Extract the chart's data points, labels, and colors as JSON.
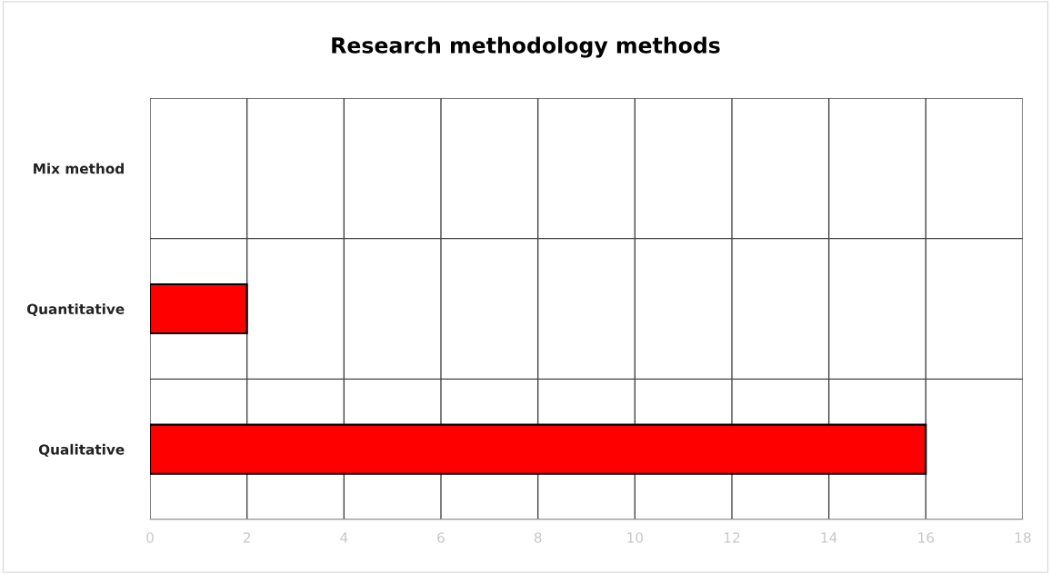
{
  "chart_data": {
    "type": "bar",
    "orientation": "horizontal",
    "title": "Research methodology methods",
    "categories": [
      "Mix method",
      "Quantitative",
      "Qualitative"
    ],
    "values": [
      0,
      2,
      16
    ],
    "color": "#ff0000",
    "xlim": [
      0,
      18
    ],
    "xticks": [
      0,
      2,
      4,
      6,
      8,
      10,
      12,
      14,
      16,
      18
    ],
    "grid": true,
    "legend": false
  }
}
